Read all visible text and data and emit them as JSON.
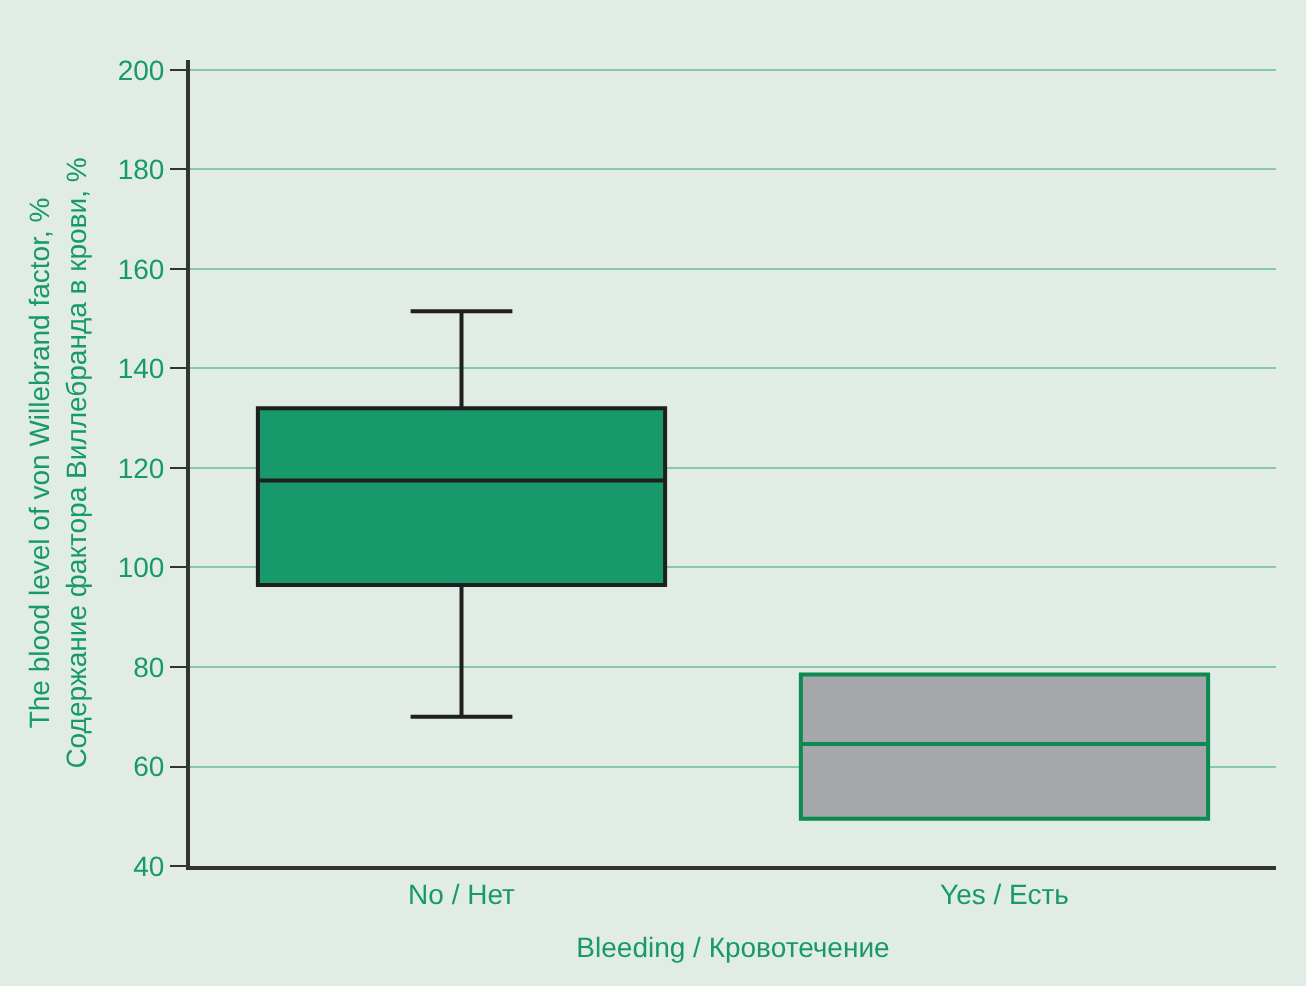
{
  "chart_data": {
    "type": "box",
    "xlabel": "Bleeding / Кровотечение",
    "ylabel": "The blood level of von Willebrand factor, %\nСодержание фактора Виллебранда в крови, %",
    "categories": [
      "No / Нет",
      "Yes / Есть"
    ],
    "boxes": [
      {
        "low": 70,
        "q1": 96.5,
        "median": 117.5,
        "q3": 132,
        "high": 151.5
      },
      {
        "low": 49.5,
        "q1": 49.5,
        "median": 64.5,
        "q3": 78.5,
        "high": 78.5
      }
    ],
    "colors": [
      "#17996b",
      "#a6a7ab"
    ],
    "ylim": [
      40,
      202
    ],
    "yticks": [
      40,
      60,
      80,
      100,
      120,
      140,
      160,
      180,
      200
    ],
    "grid": "y",
    "legend": false
  }
}
